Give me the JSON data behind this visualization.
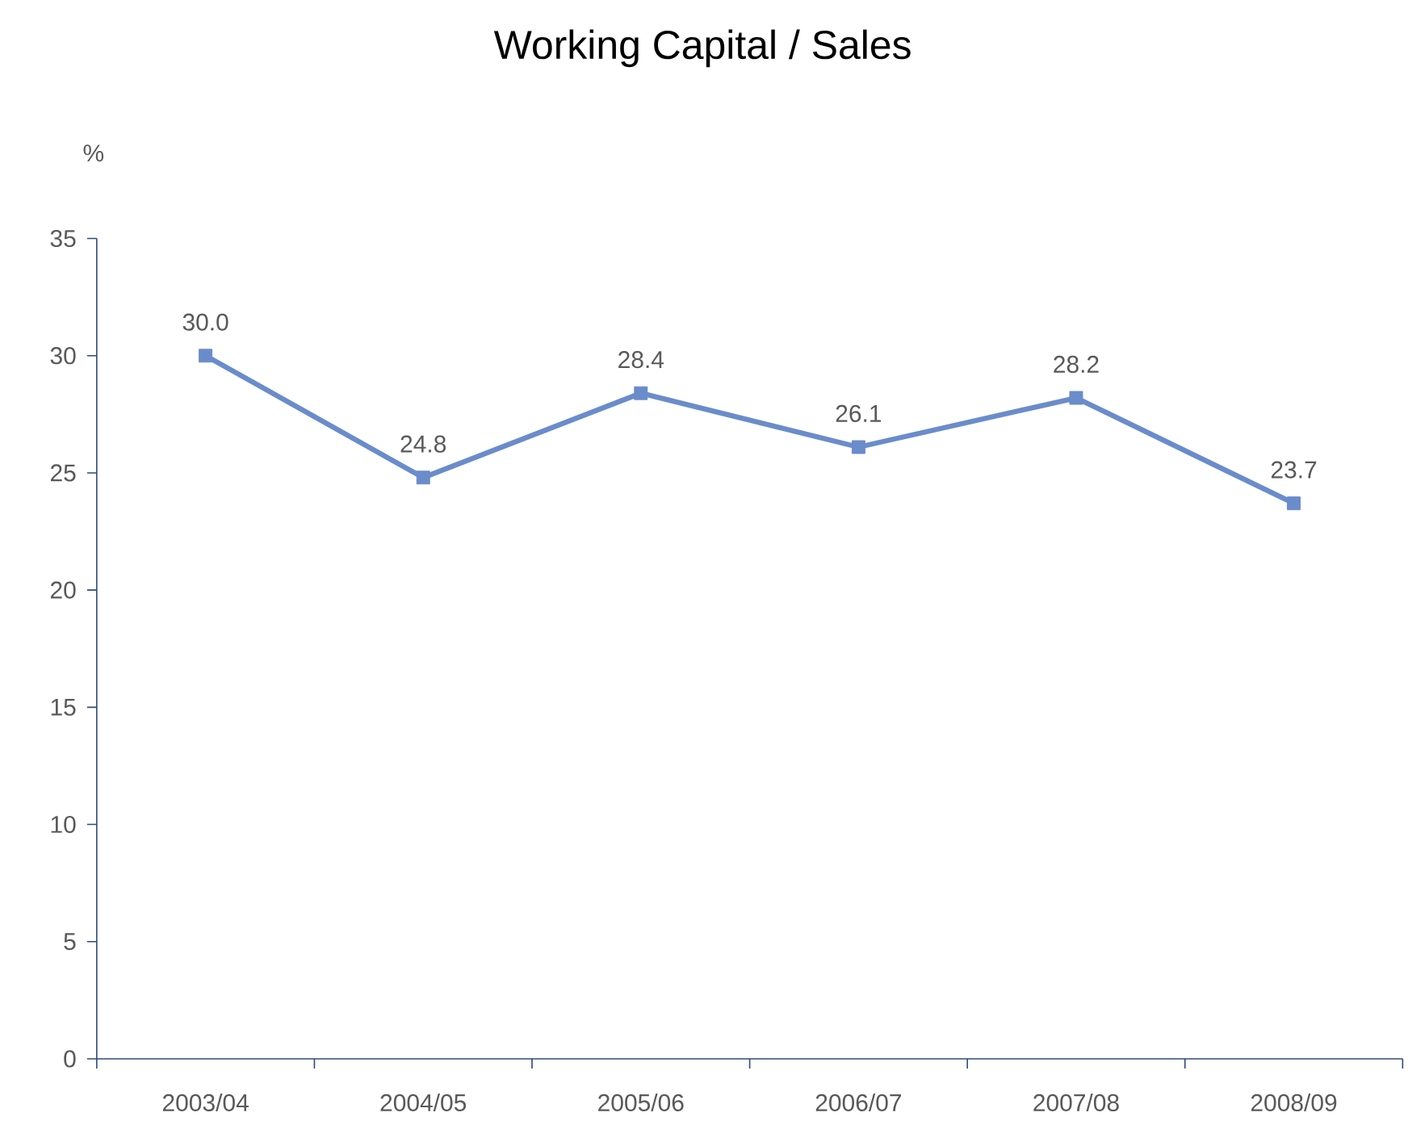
{
  "chart_data": {
    "type": "line",
    "title": "Working Capital / Sales",
    "ylabel": "%",
    "categories": [
      "2003/04",
      "2004/05",
      "2005/06",
      "2006/07",
      "2007/08",
      "2008/09"
    ],
    "values": [
      30.0,
      24.8,
      28.4,
      26.1,
      28.2,
      23.7
    ],
    "value_labels": [
      "30.0",
      "24.8",
      "28.4",
      "26.1",
      "28.2",
      "23.7"
    ],
    "color": "#6a8ccb",
    "marker": "square",
    "line_style": "solid",
    "ylim": [
      0,
      35
    ],
    "yticks": [
      0,
      5,
      10,
      15,
      20,
      25,
      30,
      35
    ]
  }
}
